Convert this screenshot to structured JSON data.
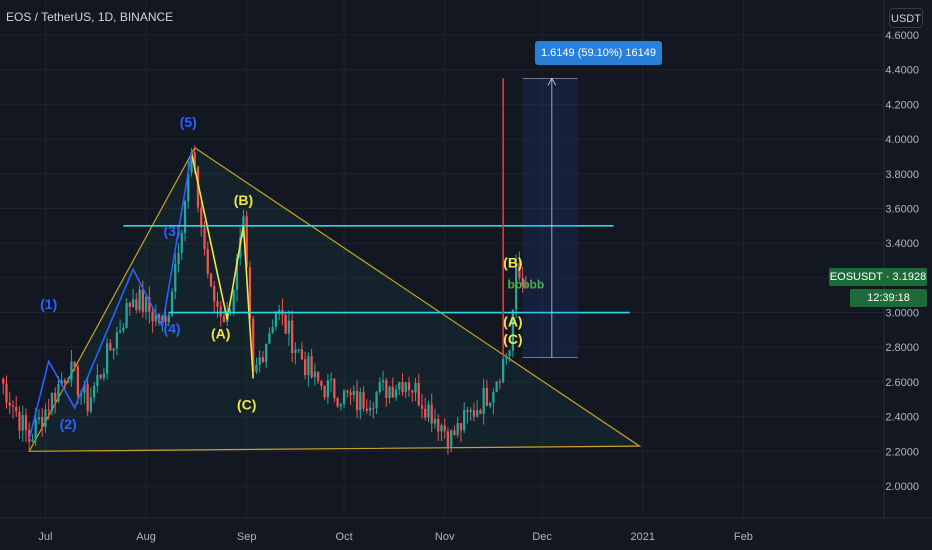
{
  "header": {
    "title": "EOS / TetherUS, 1D, BINANCE",
    "currency": "USDT"
  },
  "info_box": "1.6149 (59.10%) 16149",
  "price_label": "EOSUSDT · 3.1928",
  "timer": "12:39:18",
  "colors": {
    "background": "#131722",
    "up": "#26a69a",
    "down": "#ef5350",
    "triangle": "#c9a227",
    "hline": "#2fd8e6",
    "wave_yellow": "#f0e64a",
    "wave_blue": "#2962ff"
  },
  "chart_data": {
    "type": "candlestick",
    "ylim": [
      1.85,
      4.7
    ],
    "y_ticks": [
      "2.0000",
      "2.2000",
      "2.4000",
      "2.6000",
      "2.8000",
      "3.0000",
      "3.2000",
      "3.4000",
      "3.6000",
      "3.8000",
      "4.0000",
      "4.2000",
      "4.4000",
      "4.6000"
    ],
    "x_ticks": [
      "Jul",
      "Aug",
      "Sep",
      "Oct",
      "Nov",
      "Dec",
      "2021",
      "Feb"
    ],
    "x_range": [
      "2020-06-17",
      "2021-02-28"
    ],
    "horizontal_levels": [
      3.5,
      3.0
    ],
    "triangle": [
      {
        "date": "2020-06-26",
        "price": 2.2
      },
      {
        "date": "2020-08-16",
        "price": 3.95
      },
      {
        "date": "2020-12-31",
        "price": 2.23
      }
    ],
    "wave_labels": [
      {
        "text": "(1)",
        "date": "2020-07-02",
        "price": 3.02,
        "color": "blue"
      },
      {
        "text": "(2)",
        "date": "2020-07-08",
        "price": 2.33,
        "color": "blue"
      },
      {
        "text": "(3)",
        "date": "2020-08-09",
        "price": 3.44,
        "color": "blue"
      },
      {
        "text": "(4)",
        "date": "2020-08-09",
        "price": 2.88,
        "color": "blue"
      },
      {
        "text": "(5)",
        "date": "2020-08-14",
        "price": 4.07,
        "color": "blue"
      },
      {
        "text": "(B)",
        "date": "2020-08-31",
        "price": 3.62,
        "color": "yellow"
      },
      {
        "text": "(A)",
        "date": "2020-08-24",
        "price": 2.85,
        "color": "yellow"
      },
      {
        "text": "(C)",
        "date": "2020-09-01",
        "price": 2.44,
        "color": "yellow"
      },
      {
        "text": "(B)",
        "date": "2020-11-22",
        "price": 3.26,
        "color": "yellow"
      },
      {
        "text": "(A)",
        "date": "2020-11-22",
        "price": 2.92,
        "color": "yellow"
      },
      {
        "text": "(C)",
        "date": "2020-11-22",
        "price": 2.82,
        "color": "yellow"
      },
      {
        "text": "bbbbb",
        "date": "2020-11-26",
        "price": 3.14,
        "color": "green"
      }
    ],
    "projection": {
      "start": "2020-11-25",
      "end": "2020-12-12",
      "low": 2.74,
      "high": 4.35
    },
    "red_line": {
      "date": "2020-11-19",
      "from": 4.35,
      "to": 2.75
    }
  }
}
